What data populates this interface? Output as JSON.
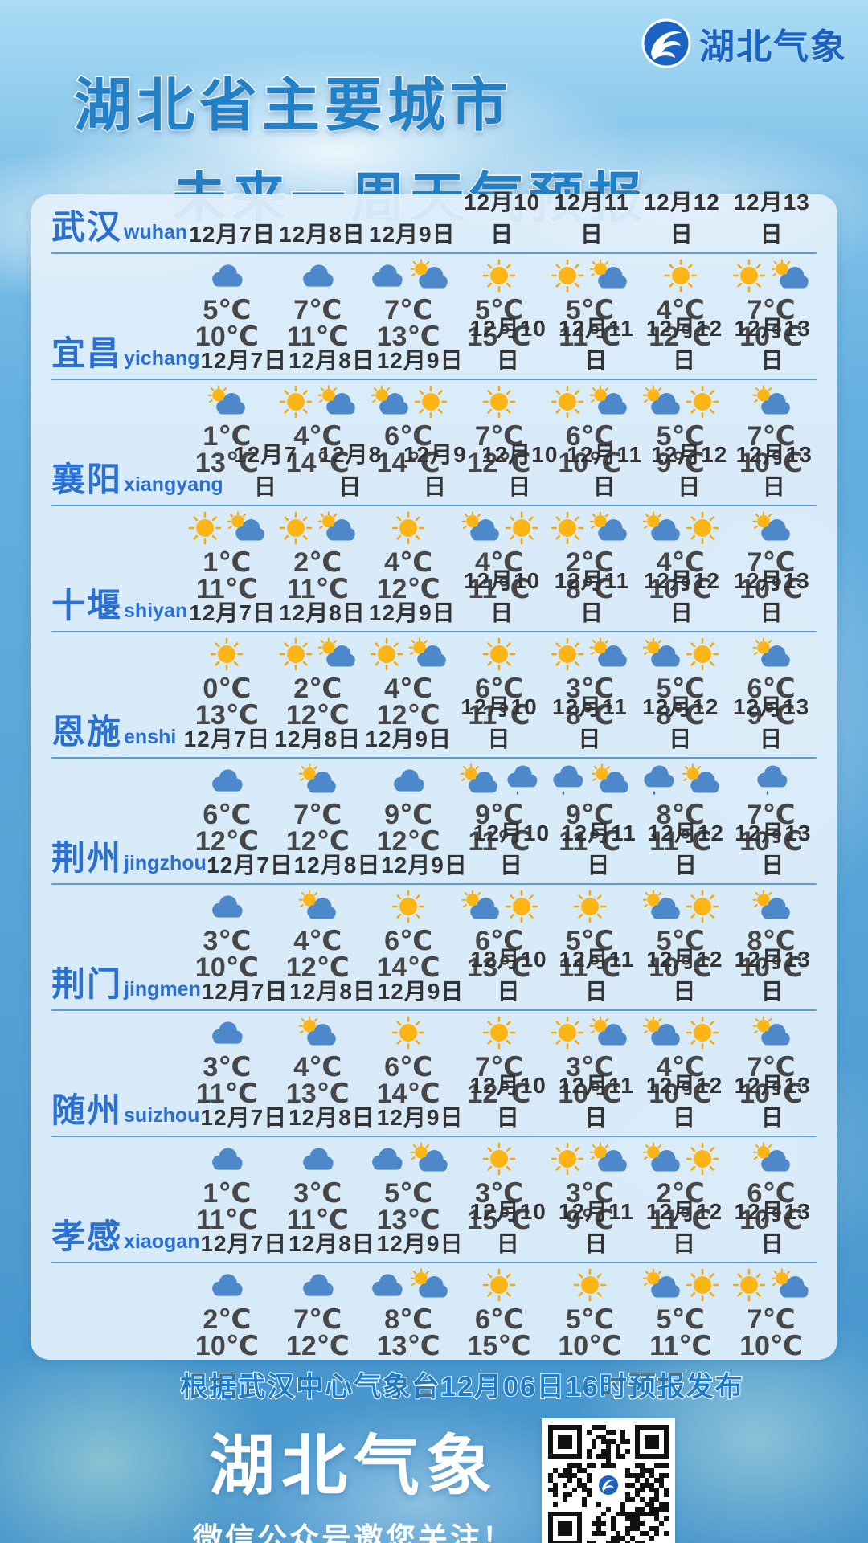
{
  "brand": {
    "logo_text": "湖北气象"
  },
  "title": {
    "line1": "湖北省主要城市",
    "line2": "未来一周天气预报"
  },
  "table": {
    "dates": [
      "12月7日",
      "12月8日",
      "12月9日",
      "12月10日",
      "12月11日",
      "12月12日",
      "12月13日"
    ],
    "cities": [
      {
        "name": "武汉",
        "pinyin": "wuhan",
        "days": [
          {
            "icons": [
              "cloud"
            ],
            "low": "5℃",
            "high": "10℃"
          },
          {
            "icons": [
              "cloud"
            ],
            "low": "7℃",
            "high": "11℃"
          },
          {
            "icons": [
              "cloud",
              "sun-cloud"
            ],
            "low": "7℃",
            "high": "13℃"
          },
          {
            "icons": [
              "sun"
            ],
            "low": "5℃",
            "high": "15℃"
          },
          {
            "icons": [
              "sun",
              "sun-cloud"
            ],
            "low": "5℃",
            "high": "11℃"
          },
          {
            "icons": [
              "sun"
            ],
            "low": "4℃",
            "high": "12℃"
          },
          {
            "icons": [
              "sun",
              "sun-cloud"
            ],
            "low": "7℃",
            "high": "10℃"
          }
        ]
      },
      {
        "name": "宜昌",
        "pinyin": "yichang",
        "days": [
          {
            "icons": [
              "sun-cloud"
            ],
            "low": "1℃",
            "high": "13℃"
          },
          {
            "icons": [
              "sun",
              "sun-cloud"
            ],
            "low": "4℃",
            "high": "14℃"
          },
          {
            "icons": [
              "sun-cloud",
              "sun"
            ],
            "low": "6℃",
            "high": "14℃"
          },
          {
            "icons": [
              "sun"
            ],
            "low": "7℃",
            "high": "12℃"
          },
          {
            "icons": [
              "sun",
              "sun-cloud"
            ],
            "low": "6℃",
            "high": "10℃"
          },
          {
            "icons": [
              "sun-cloud",
              "sun"
            ],
            "low": "5℃",
            "high": "9℃"
          },
          {
            "icons": [
              "sun-cloud"
            ],
            "low": "7℃",
            "high": "10℃"
          }
        ]
      },
      {
        "name": "襄阳",
        "pinyin": "xiangyang",
        "days": [
          {
            "icons": [
              "sun",
              "sun-cloud"
            ],
            "low": "1℃",
            "high": "11℃"
          },
          {
            "icons": [
              "sun",
              "sun-cloud"
            ],
            "low": "2℃",
            "high": "11℃"
          },
          {
            "icons": [
              "sun"
            ],
            "low": "4℃",
            "high": "12℃"
          },
          {
            "icons": [
              "sun-cloud",
              "sun"
            ],
            "low": "4℃",
            "high": "11℃"
          },
          {
            "icons": [
              "sun",
              "sun-cloud"
            ],
            "low": "2℃",
            "high": "8℃"
          },
          {
            "icons": [
              "sun-cloud",
              "sun"
            ],
            "low": "4℃",
            "high": "10℃"
          },
          {
            "icons": [
              "sun-cloud"
            ],
            "low": "7℃",
            "high": "10℃"
          }
        ]
      },
      {
        "name": "十堰",
        "pinyin": "shiyan",
        "days": [
          {
            "icons": [
              "sun"
            ],
            "low": "0℃",
            "high": "13℃"
          },
          {
            "icons": [
              "sun",
              "sun-cloud"
            ],
            "low": "2℃",
            "high": "12℃"
          },
          {
            "icons": [
              "sun",
              "sun-cloud"
            ],
            "low": "4℃",
            "high": "12℃"
          },
          {
            "icons": [
              "sun"
            ],
            "low": "6℃",
            "high": "11℃"
          },
          {
            "icons": [
              "sun",
              "sun-cloud"
            ],
            "low": "3℃",
            "high": "8℃"
          },
          {
            "icons": [
              "sun-cloud",
              "sun"
            ],
            "low": "5℃",
            "high": "8℃"
          },
          {
            "icons": [
              "sun-cloud"
            ],
            "low": "6℃",
            "high": "9℃"
          }
        ]
      },
      {
        "name": "恩施",
        "pinyin": "enshi",
        "days": [
          {
            "icons": [
              "cloud"
            ],
            "low": "6℃",
            "high": "12℃"
          },
          {
            "icons": [
              "sun-cloud"
            ],
            "low": "7℃",
            "high": "12℃"
          },
          {
            "icons": [
              "cloud"
            ],
            "low": "9℃",
            "high": "12℃"
          },
          {
            "icons": [
              "sun-cloud",
              "rain"
            ],
            "low": "9℃",
            "high": "11℃"
          },
          {
            "icons": [
              "rain",
              "sun-cloud"
            ],
            "low": "9℃",
            "high": "11℃"
          },
          {
            "icons": [
              "rain",
              "sun-cloud"
            ],
            "low": "8℃",
            "high": "11℃"
          },
          {
            "icons": [
              "rain"
            ],
            "low": "7℃",
            "high": "10℃"
          }
        ]
      },
      {
        "name": "荆州",
        "pinyin": "jingzhou",
        "days": [
          {
            "icons": [
              "cloud"
            ],
            "low": "3℃",
            "high": "10℃"
          },
          {
            "icons": [
              "sun-cloud"
            ],
            "low": "4℃",
            "high": "12℃"
          },
          {
            "icons": [
              "sun"
            ],
            "low": "6℃",
            "high": "14℃"
          },
          {
            "icons": [
              "sun-cloud",
              "sun"
            ],
            "low": "6℃",
            "high": "13℃"
          },
          {
            "icons": [
              "sun"
            ],
            "low": "5℃",
            "high": "11℃"
          },
          {
            "icons": [
              "sun-cloud",
              "sun"
            ],
            "low": "5℃",
            "high": "10℃"
          },
          {
            "icons": [
              "sun-cloud"
            ],
            "low": "8℃",
            "high": "10℃"
          }
        ]
      },
      {
        "name": "荆门",
        "pinyin": "jingmen",
        "days": [
          {
            "icons": [
              "cloud"
            ],
            "low": "3℃",
            "high": "11℃"
          },
          {
            "icons": [
              "sun-cloud"
            ],
            "low": "4℃",
            "high": "13℃"
          },
          {
            "icons": [
              "sun"
            ],
            "low": "6℃",
            "high": "14℃"
          },
          {
            "icons": [
              "sun"
            ],
            "low": "7℃",
            "high": "12℃"
          },
          {
            "icons": [
              "sun",
              "sun-cloud"
            ],
            "low": "3℃",
            "high": "10℃"
          },
          {
            "icons": [
              "sun-cloud",
              "sun"
            ],
            "low": "4℃",
            "high": "10℃"
          },
          {
            "icons": [
              "sun-cloud"
            ],
            "low": "7℃",
            "high": "10℃"
          }
        ]
      },
      {
        "name": "随州",
        "pinyin": "suizhou",
        "days": [
          {
            "icons": [
              "cloud"
            ],
            "low": "1℃",
            "high": "11℃"
          },
          {
            "icons": [
              "cloud"
            ],
            "low": "3℃",
            "high": "11℃"
          },
          {
            "icons": [
              "cloud",
              "sun-cloud"
            ],
            "low": "5℃",
            "high": "13℃"
          },
          {
            "icons": [
              "sun"
            ],
            "low": "3℃",
            "high": "15℃"
          },
          {
            "icons": [
              "sun",
              "sun-cloud"
            ],
            "low": "3℃",
            "high": "9℃"
          },
          {
            "icons": [
              "sun-cloud",
              "sun"
            ],
            "low": "2℃",
            "high": "11℃"
          },
          {
            "icons": [
              "sun-cloud"
            ],
            "low": "6℃",
            "high": "10℃"
          }
        ]
      },
      {
        "name": "孝感",
        "pinyin": "xiaogan",
        "days": [
          {
            "icons": [
              "cloud"
            ],
            "low": "2℃",
            "high": "10℃"
          },
          {
            "icons": [
              "cloud"
            ],
            "low": "7℃",
            "high": "12℃"
          },
          {
            "icons": [
              "cloud",
              "sun-cloud"
            ],
            "low": "8℃",
            "high": "13℃"
          },
          {
            "icons": [
              "sun"
            ],
            "low": "6℃",
            "high": "15℃"
          },
          {
            "icons": [
              "sun"
            ],
            "low": "5℃",
            "high": "10℃"
          },
          {
            "icons": [
              "sun-cloud",
              "sun"
            ],
            "low": "5℃",
            "high": "11℃"
          },
          {
            "icons": [
              "sun",
              "sun-cloud"
            ],
            "low": "7℃",
            "high": "10℃"
          }
        ]
      }
    ]
  },
  "footer": {
    "source": "根据武汉中心气象台12月06日16时预报发布",
    "brand": "湖北气象",
    "wechat": "微信公众号邀您关注！"
  },
  "colors": {
    "title_blue": "#2180c6",
    "city_blue": "#2a6fd2",
    "date_dark": "#333333",
    "temp_dark": "#474747",
    "sun_yellow": "#FDB515",
    "cloud_blue": "#4D88CB",
    "panel_bg": "#e2f0fb",
    "logo_blue": "#1a63c2"
  }
}
